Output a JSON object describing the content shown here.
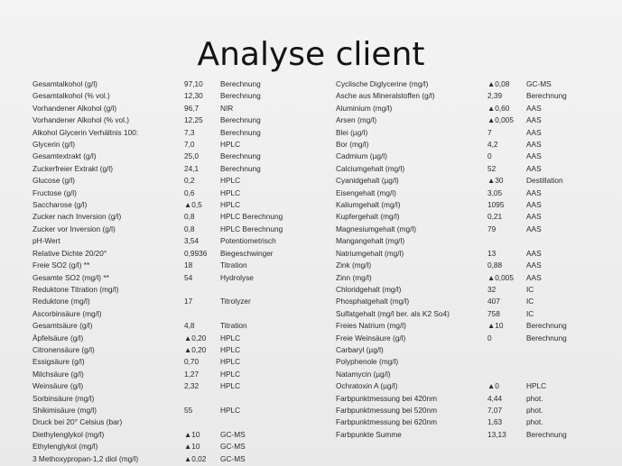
{
  "title": "Analyse client",
  "left_rows": [
    [
      "Gesamtalkohol (g/l)",
      "97,10",
      "Berechnung"
    ],
    [
      "Gesamtalkohol (% vol.)",
      "12,30",
      "Berechnung"
    ],
    [
      "Vorhandener Alkohol (g/l)",
      "96,7",
      "NIR"
    ],
    [
      "Vorhandener Alkohol (% vol.)",
      "12,25",
      "Berechnung"
    ],
    [
      "Alkohol Glycerin Verhältnis 100:",
      "7,3",
      "Berechnung"
    ],
    [
      "Glycerin (g/l)",
      "7,0",
      "HPLC"
    ],
    [
      "Gesamtextrakt (g/l)",
      "25,0",
      "Berechnung"
    ],
    [
      "Zuckerfreier Extrakt (g/l)",
      "24,1",
      "Berechnung"
    ],
    [
      "Glucose (g/l)",
      "0,2",
      "HPLC"
    ],
    [
      "Fructose (g/l)",
      "0,6",
      "HPLC"
    ],
    [
      "Saccharose (g/l)",
      "▲0,5",
      "HPLC"
    ],
    [
      "Zucker nach Inversion (g/l)",
      "0,8",
      "HPLC Berechnung"
    ],
    [
      "Zucker vor Inversion (g/l)",
      "0,8",
      "HPLC Berechnung"
    ],
    [
      "pH-Wert",
      "3,54",
      "Potentiometrisch"
    ],
    [
      "Relative Dichte 20/20°",
      "0,9936",
      "Biegeschwinger"
    ],
    [
      "Freie SO2 (g/l) **",
      "18",
      "Titration"
    ],
    [
      "Gesamte SO2 (mg/l) **",
      "54",
      "Hydrolyse"
    ],
    [
      "Reduktone Titration (mg/l)",
      "",
      ""
    ],
    [
      "Reduktone (mg/l)",
      "17",
      "Titrolyzer"
    ],
    [
      "Ascorbinsäure (mg/l)",
      "",
      ""
    ],
    [
      "Gesamtsäure (g/l)",
      "4,8",
      "Titration"
    ],
    [
      "Äpfelsäure (g/l)",
      "▲0,20",
      "HPLC"
    ],
    [
      "Citronensäure (g/l)",
      "▲0,20",
      "HPLC"
    ],
    [
      "Essigsäure (g/l)",
      "0,70",
      "HPLC"
    ],
    [
      "Milchsäure (g/l)",
      "1,27",
      "HPLC"
    ],
    [
      "Weinsäure (g/l)",
      "2,32",
      "HPLC"
    ],
    [
      "Sorbinsäure (mg/l)",
      "",
      ""
    ],
    [
      "Shikimisäure (mg/l)",
      "55",
      "HPLC"
    ],
    [
      "Druck bei 20° Celsius (bar)",
      "",
      ""
    ],
    [
      "Diethylenglykol (mg/l)",
      "▲10",
      "GC-MS"
    ],
    [
      "Ethylenglykol (mg/l)",
      "▲10",
      "GC-MS"
    ],
    [
      "3 Methoxypropan-1,2 diol (mg/l)",
      "▲0,02",
      "GC-MS"
    ]
  ],
  "right_rows": [
    [
      "Cyclische Diglycerine (mg/l)",
      "▲0,08",
      "GC-MS"
    ],
    [
      "Asche aus Mineralstoffen (g/l)",
      "2,39",
      "Berechnung"
    ],
    [
      "Aluminium (mg/l)",
      "▲0,60",
      "AAS"
    ],
    [
      "Arsen (mg/l)",
      "▲0,005",
      "AAS"
    ],
    [
      "Blei (µg/l)",
      "7",
      "AAS"
    ],
    [
      "Bor (mg/l)",
      "4,2",
      "AAS"
    ],
    [
      "Cadmium (µg/l)",
      "0",
      "AAS"
    ],
    [
      "Calciumgehalt (mg/l)",
      "52",
      "AAS"
    ],
    [
      "Cyanidgehalt (µg/l)",
      "▲30",
      "Destillation"
    ],
    [
      "Eisengehalt (mg/l)",
      "3,05",
      "AAS"
    ],
    [
      "Kaliumgehalt (mg/l)",
      "1095",
      "AAS"
    ],
    [
      "Kupfergehalt (mg/l)",
      "0,21",
      "AAS"
    ],
    [
      "Magnesiumgehalt (mg/l)",
      "79",
      "AAS"
    ],
    [
      "Mangangehalt (mg/l)",
      "",
      ""
    ],
    [
      "Natriumgehalt (mg/l)",
      "13",
      "AAS"
    ],
    [
      "Zink (mg/l)",
      "0,88",
      "AAS"
    ],
    [
      "Zinn (mg/l)",
      "▲0,005",
      "AAS"
    ],
    [
      "Chloridgehalt (mg/l)",
      "32",
      "IC"
    ],
    [
      "Phosphatgehalt (mg/l)",
      "407",
      "IC"
    ],
    [
      "Sulfatgehalt (mg/l ber. als K2 So4)",
      "758",
      "IC"
    ],
    [
      "Freies Natrium (mg/l)",
      "▲10",
      "Berechnung"
    ],
    [
      "Freie Weinsäure (g/l)",
      "0",
      "Berechnung"
    ],
    [
      "Carbaryl (µg/l)",
      "",
      ""
    ],
    [
      "Polyphenole (mg/l)",
      "",
      ""
    ],
    [
      "Natamycin (µg/l)",
      "",
      ""
    ],
    [
      "Ochratoxin A (µg/l)",
      "▲0",
      "HPLC"
    ],
    [
      "Farbpunktmessung bei 420nm",
      "4,44",
      "phot."
    ],
    [
      "Farbpunktmessung bei 520nm",
      "7,07",
      "phot."
    ],
    [
      "Farbpunktmessung bei 620nm",
      "1,63",
      "phot."
    ],
    [
      "Farbpunkte Summe",
      "13,13",
      "Berechnung"
    ]
  ]
}
